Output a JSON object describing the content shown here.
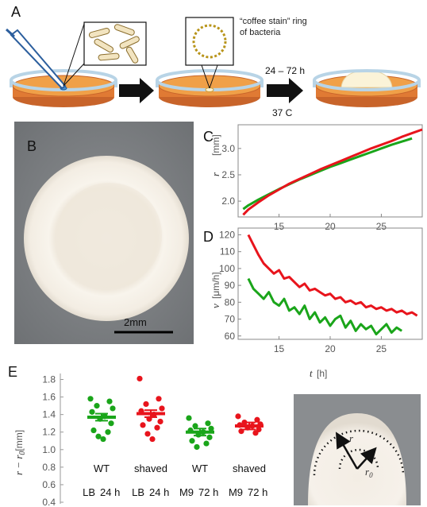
{
  "panels": {
    "a": {
      "letter": "A",
      "note_line1": "“coffee stain” ring",
      "note_line2": "of bacteria",
      "duration": "24 – 72 h",
      "temperature": "37 C"
    },
    "b": {
      "letter": "B",
      "scale_label": "2mm"
    },
    "c": {
      "letter": "C"
    },
    "d": {
      "letter": "D"
    },
    "e": {
      "letter": "E",
      "inset_r": "r",
      "inset_r0": "r",
      "inset_r0_sub": "0"
    }
  },
  "colors": {
    "green": "#1aa51a",
    "red": "#e8141c",
    "orange": "#f0a048",
    "dish_blue": "#b8d4e6",
    "agar_dark": "#d8782a"
  },
  "chart_data": [
    {
      "id": "C",
      "type": "line",
      "xlabel": "t",
      "xunit": "[h]",
      "ylabel": "r",
      "yunit": "[mm]",
      "xlim": [
        11,
        29
      ],
      "ylim": [
        1.7,
        3.45
      ],
      "xticks": [
        15,
        20,
        25
      ],
      "yticks": [
        2.0,
        2.5,
        3.0
      ],
      "grid": false,
      "series": [
        {
          "color": "green",
          "x": [
            11.5,
            12,
            13,
            14,
            15,
            16,
            17,
            18,
            19,
            20,
            21,
            22,
            23,
            24,
            25,
            26,
            27,
            28
          ],
          "y": [
            1.85,
            1.92,
            2.03,
            2.13,
            2.23,
            2.32,
            2.41,
            2.49,
            2.57,
            2.65,
            2.72,
            2.79,
            2.86,
            2.93,
            3.0,
            3.07,
            3.13,
            3.19
          ]
        },
        {
          "color": "red",
          "x": [
            11.5,
            12,
            13,
            14,
            15,
            16,
            17,
            18,
            19,
            20,
            21,
            22,
            23,
            24,
            25,
            26,
            27,
            28,
            29
          ],
          "y": [
            1.74,
            1.84,
            1.98,
            2.11,
            2.22,
            2.33,
            2.42,
            2.51,
            2.6,
            2.68,
            2.76,
            2.84,
            2.92,
            3.0,
            3.07,
            3.14,
            3.22,
            3.29,
            3.36
          ]
        }
      ]
    },
    {
      "id": "D",
      "type": "line",
      "xlabel": "t",
      "xunit": "[h]",
      "ylabel": "v",
      "yunit": "[μm/h]",
      "xlim": [
        11,
        29
      ],
      "ylim": [
        58,
        124
      ],
      "xticks": [
        15,
        20,
        25
      ],
      "yticks": [
        60,
        70,
        80,
        90,
        100,
        110,
        120
      ],
      "grid": false,
      "series": [
        {
          "color": "red",
          "x": [
            12,
            12.5,
            13,
            13.5,
            14,
            14.5,
            15,
            15.5,
            16,
            16.5,
            17,
            17.5,
            18,
            18.5,
            19,
            19.5,
            20,
            20.5,
            21,
            21.5,
            22,
            22.5,
            23,
            23.5,
            24,
            24.5,
            25,
            25.5,
            26,
            26.5,
            27,
            27.5,
            28,
            28.5
          ],
          "y": [
            120,
            114,
            108,
            103,
            100,
            97,
            99,
            94,
            95,
            92,
            89,
            91,
            87,
            88,
            86,
            84,
            85,
            82,
            83,
            80,
            81,
            79,
            80,
            77,
            78,
            76,
            77,
            75,
            76,
            74,
            75,
            73,
            74,
            72
          ]
        },
        {
          "color": "green",
          "x": [
            12,
            12.5,
            13,
            13.5,
            14,
            14.5,
            15,
            15.5,
            16,
            16.5,
            17,
            17.5,
            18,
            18.5,
            19,
            19.5,
            20,
            20.5,
            21,
            21.5,
            22,
            22.5,
            23,
            23.5,
            24,
            24.5,
            25,
            25.5,
            26,
            26.5,
            27
          ],
          "y": [
            94,
            88,
            85,
            82,
            86,
            80,
            78,
            82,
            75,
            77,
            73,
            78,
            70,
            74,
            68,
            71,
            66,
            70,
            72,
            65,
            69,
            63,
            67,
            64,
            66,
            61,
            64,
            67,
            62,
            65,
            63
          ]
        }
      ]
    },
    {
      "id": "E",
      "type": "scatter",
      "ylabel": "r − r",
      "ylabel_sub": "0",
      "yunit": "[mm]",
      "ylim": [
        0.4,
        1.85
      ],
      "yticks": [
        "1.8",
        "1.6",
        "1.4",
        "1.2",
        "1.0",
        "0.8",
        "0.6",
        "0.4"
      ],
      "groups": [
        {
          "name": "WT",
          "medium": "LB",
          "time": "24 h",
          "color": "green",
          "mean": 1.37,
          "points": [
            1.58,
            1.55,
            1.5,
            1.47,
            1.43,
            1.38,
            1.35,
            1.3,
            1.22,
            1.2,
            1.15,
            1.12
          ]
        },
        {
          "name": "shaved",
          "medium": "LB",
          "time": "24 h",
          "color": "red",
          "mean": 1.41,
          "points": [
            1.81,
            1.58,
            1.52,
            1.47,
            1.44,
            1.4,
            1.35,
            1.32,
            1.28,
            1.25,
            1.18,
            1.12
          ]
        },
        {
          "name": "WT",
          "medium": "M9",
          "time": "72 h",
          "color": "green",
          "mean": 1.2,
          "points": [
            1.36,
            1.3,
            1.27,
            1.24,
            1.22,
            1.2,
            1.17,
            1.14,
            1.1,
            1.07,
            1.03
          ]
        },
        {
          "name": "shaved",
          "medium": "M9",
          "time": "72 h",
          "color": "red",
          "mean": 1.27,
          "points": [
            1.38,
            1.34,
            1.31,
            1.29,
            1.28,
            1.27,
            1.25,
            1.23,
            1.21,
            1.19
          ]
        }
      ]
    }
  ]
}
